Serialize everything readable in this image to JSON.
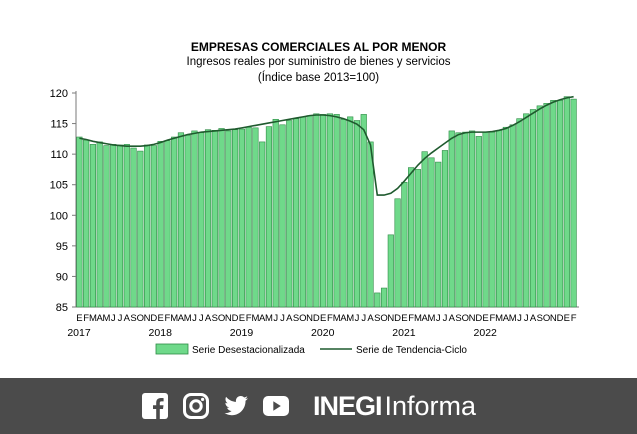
{
  "chart_data": {
    "type": "bar+line",
    "title": "EMPRESAS COMERCIALES AL POR MENOR",
    "subtitle": "Ingresos reales por suministro de bienes y servicios",
    "subtitle2": "(Índice base 2013=100)",
    "month_labels": [
      "E",
      "F",
      "M",
      "A",
      "M",
      "J",
      "J",
      "A",
      "S",
      "O",
      "N",
      "D"
    ],
    "years": [
      "2017",
      "2018",
      "2019",
      "2020",
      "2021",
      "2022"
    ],
    "ylim": [
      85,
      120
    ],
    "yticks": [
      85,
      90,
      95,
      100,
      105,
      110,
      115,
      120
    ],
    "grid": false,
    "legend_position": "bottom",
    "series": [
      {
        "name": "Serie Desestacionalizada",
        "kind": "bar",
        "color": "#6fd98a",
        "edge": "#2e8b45",
        "values": [
          112.8,
          112.3,
          111.6,
          112.0,
          111.4,
          111.6,
          111.5,
          111.6,
          111.0,
          110.5,
          111.5,
          111.4,
          112.1,
          112.2,
          112.8,
          113.5,
          113.1,
          113.8,
          113.5,
          114.0,
          113.9,
          114.2,
          113.8,
          114.0,
          114.1,
          114.4,
          114.3,
          112.0,
          114.5,
          115.7,
          114.8,
          115.5,
          115.8,
          116.1,
          116.3,
          116.6,
          116.5,
          116.6,
          116.5,
          115.7,
          116.1,
          115.5,
          116.5,
          112.0,
          87.3,
          88.1,
          96.8,
          102.7,
          105.4,
          107.8,
          107.5,
          110.4,
          109.4,
          108.7,
          110.6,
          113.8,
          113.5,
          113.6,
          113.8,
          112.9,
          113.6,
          113.6,
          113.9,
          114.4,
          114.8,
          115.8,
          116.6,
          117.3,
          117.9,
          118.3,
          118.8,
          118.8,
          119.4,
          119.0
        ]
      },
      {
        "name": "Serie de Tendencia-Ciclo",
        "kind": "line",
        "color": "#1f5a2e",
        "values": [
          112.6,
          112.4,
          112.1,
          111.9,
          111.7,
          111.5,
          111.4,
          111.3,
          111.3,
          111.3,
          111.4,
          111.6,
          111.9,
          112.3,
          112.6,
          112.9,
          113.2,
          113.4,
          113.6,
          113.7,
          113.8,
          113.9,
          114.0,
          114.1,
          114.3,
          114.5,
          114.7,
          114.9,
          115.1,
          115.3,
          115.5,
          115.7,
          115.9,
          116.1,
          116.3,
          116.4,
          116.4,
          116.3,
          116.1,
          115.8,
          115.4,
          114.9,
          114.0,
          111.5,
          103.3,
          103.3,
          103.6,
          104.4,
          105.6,
          106.9,
          108.2,
          109.3,
          110.2,
          111.0,
          111.8,
          112.6,
          113.2,
          113.5,
          113.6,
          113.6,
          113.6,
          113.7,
          113.9,
          114.2,
          114.7,
          115.3,
          116.0,
          116.7,
          117.4,
          118.0,
          118.5,
          118.9,
          119.2,
          119.4
        ]
      }
    ]
  },
  "footer": {
    "brand_strong": "INEGI",
    "brand_light": "Informa",
    "icons": [
      "facebook-icon",
      "instagram-icon",
      "twitter-icon",
      "youtube-icon"
    ],
    "background_color": "#4b4b4b"
  }
}
